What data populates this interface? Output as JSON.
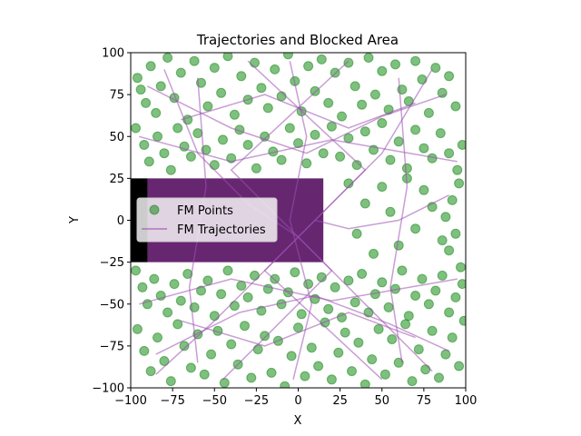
{
  "chart_data": {
    "type": "scatter",
    "title": "Trajectories and Blocked Area",
    "xlabel": "X",
    "ylabel": "Y",
    "xlim": [
      -100,
      100
    ],
    "ylim": [
      -100,
      100
    ],
    "xticks": [
      -100,
      -75,
      -50,
      -25,
      0,
      25,
      50,
      75,
      100
    ],
    "yticks": [
      -100,
      -75,
      -50,
      -25,
      0,
      25,
      50,
      75,
      100
    ],
    "xtick_labels": [
      "−100",
      "−75",
      "−50",
      "−25",
      "0",
      "25",
      "50",
      "75",
      "100"
    ],
    "ytick_labels": [
      "−100",
      "−75",
      "−50",
      "−25",
      "0",
      "25",
      "50",
      "75",
      "100"
    ],
    "grid": false,
    "legend_position": "center-left",
    "blocked_area": {
      "x": [
        -100,
        -90
      ],
      "y": [
        -25,
        25
      ],
      "color": "#000000"
    },
    "blocked_density_region": {
      "x": [
        -90,
        15
      ],
      "y": [
        -25,
        25
      ],
      "color": "#4b0057"
    },
    "series": [
      {
        "name": "FM Points",
        "kind": "scatter",
        "color": "#008000",
        "alpha": 0.5,
        "points": [
          [
            -96,
            85
          ],
          [
            -94,
            78
          ],
          [
            -91,
            70
          ],
          [
            -88,
            92
          ],
          [
            -85,
            64
          ],
          [
            -82,
            80
          ],
          [
            -78,
            97
          ],
          [
            -74,
            73
          ],
          [
            -70,
            88
          ],
          [
            -66,
            60
          ],
          [
            -62,
            95
          ],
          [
            -58,
            82
          ],
          [
            -54,
            68
          ],
          [
            -50,
            91
          ],
          [
            -46,
            76
          ],
          [
            -42,
            98
          ],
          [
            -38,
            63
          ],
          [
            -34,
            86
          ],
          [
            -30,
            72
          ],
          [
            -26,
            94
          ],
          [
            -22,
            79
          ],
          [
            -18,
            67
          ],
          [
            -14,
            90
          ],
          [
            -10,
            74
          ],
          [
            -6,
            99
          ],
          [
            -2,
            83
          ],
          [
            2,
            65
          ],
          [
            6,
            92
          ],
          [
            10,
            77
          ],
          [
            14,
            96
          ],
          [
            18,
            70
          ],
          [
            22,
            88
          ],
          [
            26,
            62
          ],
          [
            30,
            94
          ],
          [
            34,
            80
          ],
          [
            38,
            69
          ],
          [
            42,
            97
          ],
          [
            46,
            75
          ],
          [
            50,
            89
          ],
          [
            54,
            66
          ],
          [
            58,
            93
          ],
          [
            62,
            78
          ],
          [
            66,
            71
          ],
          [
            70,
            95
          ],
          [
            74,
            84
          ],
          [
            78,
            64
          ],
          [
            82,
            91
          ],
          [
            86,
            76
          ],
          [
            90,
            86
          ],
          [
            94,
            68
          ],
          [
            -97,
            55
          ],
          [
            -92,
            45
          ],
          [
            -89,
            35
          ],
          [
            -84,
            50
          ],
          [
            -80,
            40
          ],
          [
            -76,
            30
          ],
          [
            -72,
            55
          ],
          [
            -68,
            44
          ],
          [
            -64,
            38
          ],
          [
            -60,
            52
          ],
          [
            -55,
            42
          ],
          [
            -50,
            33
          ],
          [
            -45,
            48
          ],
          [
            -40,
            37
          ],
          [
            -35,
            54
          ],
          [
            -30,
            45
          ],
          [
            -25,
            31
          ],
          [
            -20,
            50
          ],
          [
            -15,
            41
          ],
          [
            -10,
            36
          ],
          [
            -5,
            55
          ],
          [
            0,
            46
          ],
          [
            5,
            34
          ],
          [
            10,
            51
          ],
          [
            15,
            40
          ],
          [
            20,
            56
          ],
          [
            25,
            38
          ],
          [
            30,
            49
          ],
          [
            35,
            33
          ],
          [
            40,
            53
          ],
          [
            45,
            42
          ],
          [
            50,
            58
          ],
          [
            55,
            36
          ],
          [
            60,
            47
          ],
          [
            65,
            31
          ],
          [
            70,
            54
          ],
          [
            75,
            43
          ],
          [
            80,
            37
          ],
          [
            85,
            52
          ],
          [
            90,
            40
          ],
          [
            95,
            30
          ],
          [
            98,
            45
          ],
          [
            96,
            22
          ],
          [
            92,
            12
          ],
          [
            88,
            2
          ],
          [
            94,
            -8
          ],
          [
            90,
            -18
          ],
          [
            97,
            -28
          ],
          [
            86,
            -12
          ],
          [
            80,
            8
          ],
          [
            75,
            18
          ],
          [
            70,
            -5
          ],
          [
            65,
            25
          ],
          [
            60,
            -15
          ],
          [
            55,
            5
          ],
          [
            50,
            20
          ],
          [
            45,
            -20
          ],
          [
            40,
            10
          ],
          [
            35,
            -8
          ],
          [
            30,
            22
          ],
          [
            -97,
            -30
          ],
          [
            -93,
            -40
          ],
          [
            -90,
            -50
          ],
          [
            -86,
            -35
          ],
          [
            -82,
            -45
          ],
          [
            -78,
            -55
          ],
          [
            -74,
            -38
          ],
          [
            -70,
            -48
          ],
          [
            -66,
            -32
          ],
          [
            -62,
            -52
          ],
          [
            -58,
            -42
          ],
          [
            -54,
            -36
          ],
          [
            -50,
            -57
          ],
          [
            -46,
            -44
          ],
          [
            -42,
            -30
          ],
          [
            -38,
            -51
          ],
          [
            -34,
            -39
          ],
          [
            -30,
            -46
          ],
          [
            -26,
            -33
          ],
          [
            -22,
            -54
          ],
          [
            -18,
            -41
          ],
          [
            -14,
            -35
          ],
          [
            -10,
            -50
          ],
          [
            -6,
            -43
          ],
          [
            -2,
            -31
          ],
          [
            2,
            -56
          ],
          [
            6,
            -38
          ],
          [
            10,
            -47
          ],
          [
            14,
            -34
          ],
          [
            18,
            -53
          ],
          [
            22,
            -40
          ],
          [
            26,
            -58
          ],
          [
            30,
            -36
          ],
          [
            34,
            -49
          ],
          [
            38,
            -32
          ],
          [
            42,
            -55
          ],
          [
            46,
            -44
          ],
          [
            50,
            -37
          ],
          [
            54,
            -52
          ],
          [
            58,
            -41
          ],
          [
            62,
            -30
          ],
          [
            66,
            -57
          ],
          [
            70,
            -45
          ],
          [
            74,
            -35
          ],
          [
            78,
            -50
          ],
          [
            82,
            -42
          ],
          [
            86,
            -33
          ],
          [
            90,
            -55
          ],
          [
            94,
            -46
          ],
          [
            98,
            -38
          ],
          [
            -96,
            -65
          ],
          [
            -92,
            -78
          ],
          [
            -88,
            -90
          ],
          [
            -84,
            -70
          ],
          [
            -80,
            -84
          ],
          [
            -76,
            -96
          ],
          [
            -72,
            -62
          ],
          [
            -68,
            -75
          ],
          [
            -64,
            -88
          ],
          [
            -60,
            -68
          ],
          [
            -56,
            -92
          ],
          [
            -52,
            -80
          ],
          [
            -48,
            -66
          ],
          [
            -44,
            -97
          ],
          [
            -40,
            -74
          ],
          [
            -36,
            -86
          ],
          [
            -32,
            -63
          ],
          [
            -28,
            -94
          ],
          [
            -24,
            -77
          ],
          [
            -20,
            -69
          ],
          [
            -16,
            -91
          ],
          [
            -12,
            -72
          ],
          [
            -8,
            -99
          ],
          [
            -4,
            -81
          ],
          [
            0,
            -64
          ],
          [
            4,
            -93
          ],
          [
            8,
            -76
          ],
          [
            12,
            -87
          ],
          [
            16,
            -61
          ],
          [
            20,
            -95
          ],
          [
            24,
            -79
          ],
          [
            28,
            -67
          ],
          [
            32,
            -90
          ],
          [
            36,
            -73
          ],
          [
            40,
            -98
          ],
          [
            44,
            -83
          ],
          [
            48,
            -65
          ],
          [
            52,
            -92
          ],
          [
            56,
            -71
          ],
          [
            60,
            -85
          ],
          [
            64,
            -62
          ],
          [
            68,
            -96
          ],
          [
            72,
            -77
          ],
          [
            76,
            -89
          ],
          [
            80,
            -66
          ],
          [
            84,
            -94
          ],
          [
            88,
            -80
          ],
          [
            92,
            -70
          ],
          [
            96,
            -87
          ],
          [
            99,
            -60
          ]
        ]
      },
      {
        "name": "FM Trajectories",
        "kind": "line",
        "color": "#9c4fb0",
        "alpha": 0.55,
        "paths": [
          [
            [
              -90,
              80
            ],
            [
              -40,
              55
            ],
            [
              5,
              40
            ],
            [
              50,
              62
            ],
            [
              88,
              75
            ]
          ],
          [
            [
              -85,
              -80
            ],
            [
              -35,
              -55
            ],
            [
              10,
              -45
            ],
            [
              55,
              -62
            ],
            [
              90,
              -78
            ]
          ],
          [
            [
              -80,
              90
            ],
            [
              -60,
              40
            ],
            [
              -30,
              10
            ],
            [
              0,
              -10
            ],
            [
              40,
              -50
            ],
            [
              80,
              -90
            ]
          ],
          [
            [
              80,
              90
            ],
            [
              50,
              40
            ],
            [
              20,
              10
            ],
            [
              -10,
              -20
            ],
            [
              -50,
              -60
            ],
            [
              -85,
              -92
            ]
          ],
          [
            [
              -70,
              60
            ],
            [
              -20,
              75
            ],
            [
              30,
              55
            ],
            [
              70,
              70
            ]
          ],
          [
            [
              -70,
              -60
            ],
            [
              -20,
              -75
            ],
            [
              30,
              -55
            ],
            [
              70,
              -70
            ]
          ],
          [
            [
              -60,
              85
            ],
            [
              -55,
              20
            ],
            [
              -65,
              -40
            ],
            [
              -60,
              -85
            ]
          ],
          [
            [
              60,
              85
            ],
            [
              65,
              20
            ],
            [
              55,
              -40
            ],
            [
              62,
              -85
            ]
          ],
          [
            [
              -5,
              95
            ],
            [
              5,
              50
            ],
            [
              -5,
              0
            ],
            [
              8,
              -50
            ],
            [
              -3,
              -95
            ]
          ],
          [
            [
              -95,
              50
            ],
            [
              -40,
              35
            ],
            [
              20,
              48
            ],
            [
              95,
              35
            ]
          ],
          [
            [
              -95,
              -50
            ],
            [
              -40,
              -35
            ],
            [
              20,
              -48
            ],
            [
              95,
              -35
            ]
          ],
          [
            [
              -30,
              95
            ],
            [
              40,
              30
            ],
            [
              -20,
              -30
            ],
            [
              50,
              -95
            ]
          ],
          [
            [
              30,
              95
            ],
            [
              -40,
              30
            ],
            [
              20,
              -30
            ],
            [
              -45,
              -95
            ]
          ],
          [
            [
              90,
              15
            ],
            [
              60,
              0
            ],
            [
              30,
              -5
            ],
            [
              10,
              0
            ]
          ]
        ]
      }
    ]
  }
}
